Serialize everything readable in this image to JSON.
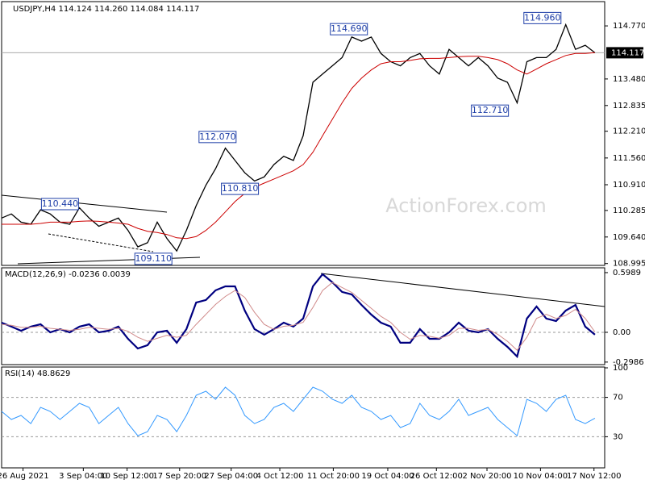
{
  "chart_data": [
    {
      "type": "line",
      "title": "USDJPY,H4  114.124 114.260 114.084 114.117",
      "watermark": "ActionForex.com",
      "xlim": [
        0,
        62
      ],
      "ylim": [
        108.95,
        115.34
      ],
      "yticks": [
        {
          "value": 114.77,
          "label": "114.770"
        },
        {
          "value": 113.48,
          "label": "113.480"
        },
        {
          "value": 112.835,
          "label": "112.835"
        },
        {
          "value": 112.21,
          "label": "112.210"
        },
        {
          "value": 111.56,
          "label": "111.560"
        },
        {
          "value": 110.91,
          "label": "110.910"
        },
        {
          "value": 110.285,
          "label": "110.285"
        },
        {
          "value": 109.64,
          "label": "109.640"
        },
        {
          "value": 108.995,
          "label": "108.995"
        }
      ],
      "last_price": {
        "value": 114.117,
        "label": "114.117"
      },
      "series": [
        {
          "color": "#000000",
          "values": [
            110.1,
            110.2,
            110.0,
            109.95,
            110.3,
            110.2,
            110.0,
            109.95,
            110.35,
            110.1,
            109.9,
            110.0,
            110.1,
            109.8,
            109.4,
            109.5,
            110.0,
            109.6,
            109.3,
            109.8,
            110.4,
            110.9,
            111.3,
            111.8,
            111.5,
            111.2,
            111.0,
            111.1,
            111.4,
            111.6,
            111.5,
            112.1,
            113.4,
            113.6,
            113.8,
            114.0,
            114.5,
            114.4,
            114.5,
            114.1,
            113.9,
            113.8,
            114.0,
            114.1,
            113.8,
            113.6,
            114.2,
            114.0,
            113.8,
            114.0,
            113.8,
            113.5,
            113.4,
            112.9,
            113.9,
            114.0,
            114.0,
            114.2,
            114.8,
            114.2,
            114.3,
            114.117
          ]
        },
        {
          "color": "#cc0000",
          "values": [
            109.95,
            109.95,
            109.95,
            109.95,
            109.97,
            110.0,
            110.0,
            110.0,
            110.02,
            110.03,
            110.02,
            110.0,
            109.98,
            109.95,
            109.85,
            109.78,
            109.75,
            109.7,
            109.62,
            109.6,
            109.65,
            109.8,
            110.0,
            110.25,
            110.5,
            110.7,
            110.85,
            110.95,
            111.05,
            111.15,
            111.25,
            111.4,
            111.7,
            112.1,
            112.5,
            112.9,
            113.25,
            113.5,
            113.7,
            113.85,
            113.9,
            113.9,
            113.93,
            113.97,
            113.98,
            113.98,
            114.0,
            114.02,
            114.03,
            114.03,
            114.0,
            113.95,
            113.85,
            113.7,
            113.6,
            113.72,
            113.85,
            113.95,
            114.05,
            114.1,
            114.1,
            114.12
          ]
        }
      ],
      "annotations": [
        {
          "label": "110.440",
          "value": 110.44,
          "x": 6
        },
        {
          "label": "109.110",
          "value": 109.11,
          "x": 15.6
        },
        {
          "label": "112.070",
          "value": 112.07,
          "x": 22.2
        },
        {
          "label": "110.810",
          "value": 110.81,
          "x": 24.5
        },
        {
          "label": "114.690",
          "value": 114.69,
          "x": 35.7
        },
        {
          "label": "112.710",
          "value": 112.71,
          "x": 50.2
        },
        {
          "label": "114.960",
          "value": 114.96,
          "x": 55.6
        }
      ]
    },
    {
      "type": "line",
      "title": "MACD(12,26,9) -0.0236 0.0039",
      "xlim": [
        0,
        62
      ],
      "ylim": [
        -0.324,
        0.639
      ],
      "yticks": [
        0.5989,
        {
          "value": 0,
          "label": "0.00"
        },
        -0.2986
      ],
      "series": [
        {
          "color": "#000080",
          "values": [
            0.097,
            0.057,
            0.016,
            0.057,
            0.081,
            0,
            0.032,
            0,
            0.057,
            0.081,
            0,
            0.016,
            0.057,
            -0.065,
            -0.162,
            -0.129,
            0,
            0.016,
            -0.105,
            0.032,
            0.299,
            0.324,
            0.421,
            0.461,
            0.461,
            0.218,
            0.032,
            -0.024,
            0.032,
            0.097,
            0.057,
            0.138,
            0.461,
            0.583,
            0.502,
            0.405,
            0.38,
            0.275,
            0.178,
            0.097,
            0.057,
            -0.105,
            -0.105,
            0.032,
            -0.065,
            -0.065,
            0,
            0.097,
            0.016,
            0,
            0.032,
            -0.065,
            -0.146,
            -0.243,
            0.138,
            0.259,
            0.138,
            0.113,
            0.218,
            0.275,
            0.057,
            -0.0236
          ]
        },
        {
          "color": "#d08a8a",
          "values": [
            0.08,
            0.07,
            0.05,
            0.05,
            0.06,
            0.04,
            0.03,
            0.02,
            0.03,
            0.05,
            0.04,
            0.03,
            0.04,
            0.01,
            -0.05,
            -0.09,
            -0.06,
            -0.03,
            -0.05,
            -0.03,
            0.08,
            0.18,
            0.28,
            0.36,
            0.42,
            0.35,
            0.2,
            0.08,
            0.03,
            0.06,
            0.07,
            0.1,
            0.25,
            0.42,
            0.5,
            0.45,
            0.4,
            0.32,
            0.24,
            0.16,
            0.1,
            0,
            -0.07,
            -0.03,
            -0.04,
            -0.06,
            -0.03,
            0.04,
            0.04,
            0.02,
            0.03,
            -0.02,
            -0.09,
            -0.18,
            -0.05,
            0.14,
            0.18,
            0.14,
            0.17,
            0.23,
            0.14,
            0.0039
          ]
        }
      ]
    },
    {
      "type": "line",
      "title": "RSI(14) 48.8629",
      "xlim": [
        0,
        62
      ],
      "ylim": [
        0,
        100
      ],
      "yticks": [
        30,
        70,
        100
      ],
      "levels": [
        30,
        70
      ],
      "xticks": [
        {
          "value": 2.2,
          "label": "26 Aug 2021"
        },
        {
          "value": 8.4,
          "label": "3 Sep 04:00"
        },
        {
          "value": 12.9,
          "label": "10 Sep 12:00"
        },
        {
          "value": 18.3,
          "label": "17 Sep 20:00"
        },
        {
          "value": 23.6,
          "label": "27 Sep 04:00"
        },
        {
          "value": 28.6,
          "label": "4 Oct 12:00"
        },
        {
          "value": 34.1,
          "label": "11 Oct 20:00"
        },
        {
          "value": 39.7,
          "label": "19 Oct 04:00"
        },
        {
          "value": 44.7,
          "label": "26 Oct 12:00"
        },
        {
          "value": 49.9,
          "label": "2 Nov 20:00"
        },
        {
          "value": 55.4,
          "label": "10 Nov 04:00"
        },
        {
          "value": 60.9,
          "label": "17 Nov 12:00"
        }
      ],
      "series": [
        {
          "color": "#3399ff",
          "values": [
            55.7,
            47.5,
            51.6,
            43.4,
            59.8,
            55.7,
            47.5,
            55.7,
            63.9,
            59.8,
            43.4,
            51.6,
            59.8,
            43.4,
            31.1,
            35.2,
            51.6,
            47.5,
            35.2,
            51.6,
            72.1,
            76.2,
            68,
            80.3,
            72.1,
            51.6,
            43.4,
            47.5,
            59.8,
            63.9,
            55.7,
            68,
            80.3,
            76.2,
            68,
            63.9,
            72.1,
            59.8,
            55.7,
            47.5,
            51.6,
            39.3,
            43.4,
            63.9,
            51.6,
            47.5,
            55.7,
            68,
            51.6,
            55.7,
            59.8,
            47.5,
            39.3,
            31.1,
            68,
            63.9,
            55.7,
            68,
            72.1,
            47.5,
            43.4,
            48.8629
          ]
        }
      ]
    }
  ]
}
